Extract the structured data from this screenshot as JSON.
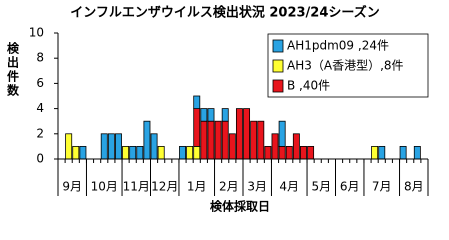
{
  "chart_data": {
    "type": "bar",
    "stacked": true,
    "title": "インフルエンザウイルス検出状況 2023/24シーズン",
    "y_label": "検出件数",
    "x_label": "検体採取日",
    "categories": [
      null,
      null,
      null,
      null,
      null,
      null,
      null,
      null,
      null,
      null,
      null,
      null,
      null,
      null,
      null,
      null,
      null,
      null,
      null,
      null,
      null,
      null,
      null,
      null,
      null,
      null,
      null,
      null,
      null,
      null,
      null,
      null,
      null,
      null,
      null,
      null,
      null,
      null,
      null,
      null,
      null,
      null,
      null,
      null,
      null,
      null,
      null,
      null,
      null,
      null,
      null,
      null
    ],
    "x_groups": [
      {
        "label": "9月",
        "span": 4
      },
      {
        "label": "10月",
        "span": 5
      },
      {
        "label": "11月",
        "span": 4
      },
      {
        "label": "12月",
        "span": 4
      },
      {
        "label": "1月",
        "span": 5
      },
      {
        "label": "2月",
        "span": 4
      },
      {
        "label": "3月",
        "span": 4
      },
      {
        "label": "4月",
        "span": 5
      },
      {
        "label": "5月",
        "span": 4
      },
      {
        "label": "6月",
        "span": 4
      },
      {
        "label": "7月",
        "span": 5
      },
      {
        "label": "8月",
        "span": 4
      }
    ],
    "series": [
      {
        "name": "AH1pdm09 ,24件",
        "color": "#29a3e3",
        "values": [
          0,
          0,
          0,
          1,
          0,
          0,
          2,
          2,
          2,
          0,
          1,
          1,
          3,
          2,
          0,
          0,
          0,
          1,
          0,
          1,
          1,
          1,
          0,
          1,
          0,
          0,
          0,
          0,
          0,
          0,
          0,
          2,
          0,
          0,
          0,
          0,
          0,
          0,
          0,
          0,
          0,
          0,
          0,
          0,
          0,
          1,
          0,
          0,
          1,
          0,
          1,
          0
        ]
      },
      {
        "name": "AH3（A香港型）,8件",
        "color": "#ffff33",
        "values": [
          0,
          2,
          1,
          0,
          0,
          0,
          0,
          0,
          0,
          1,
          0,
          0,
          0,
          0,
          1,
          0,
          0,
          0,
          1,
          1,
          0,
          0,
          0,
          0,
          0,
          0,
          0,
          0,
          0,
          0,
          0,
          0,
          0,
          0,
          0,
          0,
          0,
          0,
          0,
          0,
          0,
          0,
          0,
          0,
          1,
          0,
          0,
          0,
          0,
          0,
          0,
          0
        ]
      },
      {
        "name": "B ,40件",
        "color": "#e8141c",
        "values": [
          0,
          0,
          0,
          0,
          0,
          0,
          0,
          0,
          0,
          0,
          0,
          0,
          0,
          0,
          0,
          0,
          0,
          0,
          0,
          3,
          3,
          3,
          3,
          3,
          2,
          4,
          4,
          3,
          3,
          1,
          2,
          1,
          1,
          2,
          1,
          1,
          0,
          0,
          0,
          0,
          0,
          0,
          0,
          0,
          0,
          0,
          0,
          0,
          0,
          0,
          0,
          0
        ]
      }
    ],
    "ylim": [
      0,
      10
    ],
    "yticks": [
      0,
      2,
      4,
      6,
      8,
      10
    ],
    "grid": false,
    "legend": "upper right"
  }
}
